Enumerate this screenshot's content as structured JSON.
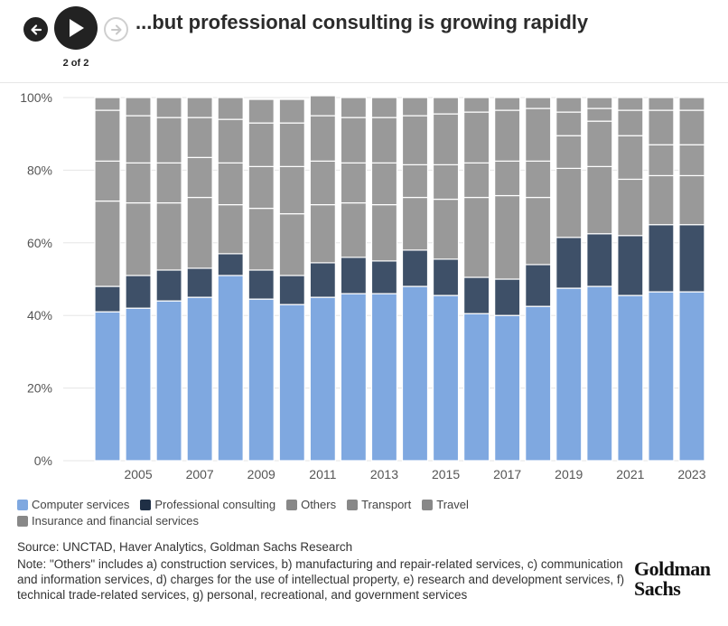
{
  "header": {
    "back_icon": "arrow-left-icon",
    "play_icon": "play-icon",
    "forward_icon": "arrow-right-icon",
    "page_counter": "2 of 2",
    "title": "...but professional consulting is growing rapidly"
  },
  "colors": {
    "computer_services": "#7fa8e0",
    "professional_consulting": "#3e5068",
    "others": "#999999",
    "transport": "#9a9a9a",
    "travel": "#999999",
    "insurance": "#9a9a9a",
    "grid": "#e5e5e5"
  },
  "chart_data": {
    "type": "bar",
    "stacked": true,
    "title": "",
    "xlabel": "",
    "ylabel": "",
    "ylim": [
      0,
      100
    ],
    "y_ticks": [
      "0%",
      "20%",
      "40%",
      "60%",
      "80%",
      "100%"
    ],
    "x_tick_labels": [
      "2005",
      "2007",
      "2009",
      "2011",
      "2013",
      "2015",
      "2017",
      "2019",
      "2021",
      "2023"
    ],
    "categories": [
      "2004",
      "2005",
      "2006",
      "2007",
      "2008",
      "2009",
      "2010",
      "2011",
      "2012",
      "2013",
      "2014",
      "2015",
      "2016",
      "2017",
      "2018",
      "2019",
      "2020",
      "2021",
      "2022",
      "2023"
    ],
    "series": [
      {
        "name": "Computer services",
        "color": "#7fa8e0",
        "values": [
          41,
          42,
          44,
          45,
          51,
          44.5,
          43,
          45,
          46,
          46,
          48,
          45.5,
          40.5,
          40,
          42.5,
          47.5,
          48,
          45.5,
          46.5,
          46.5
        ]
      },
      {
        "name": "Professional consulting",
        "color": "#3e5068",
        "values": [
          7,
          9,
          8.5,
          8,
          6,
          8,
          8,
          9.5,
          10,
          9,
          10,
          10,
          10,
          10,
          11.5,
          14,
          14.5,
          16.5,
          18.5,
          18.5
        ]
      },
      {
        "name": "Others",
        "color": "#999999",
        "values": [
          23.5,
          20,
          18.5,
          19.5,
          13.5,
          17,
          17,
          16,
          15,
          15.5,
          14.5,
          16.5,
          22,
          23,
          18.5,
          19,
          18.5,
          15.5,
          13.5,
          13.5
        ]
      },
      {
        "name": "Transport",
        "color": "#9a9a9a",
        "values": [
          11,
          11,
          11,
          11,
          11.5,
          11.5,
          13,
          12,
          11,
          11.5,
          9,
          9.5,
          9.5,
          9.5,
          10,
          9,
          12.5,
          12,
          8.5,
          8.5
        ]
      },
      {
        "name": "Travel",
        "color": "#999999",
        "values": [
          14,
          13,
          12.5,
          11,
          12,
          12,
          12,
          12.5,
          12.5,
          12.5,
          13.5,
          14,
          14,
          14,
          14.5,
          6.5,
          3.5,
          7,
          9.5,
          9.5
        ]
      },
      {
        "name": "Insurance and financial services",
        "color": "#9a9a9a",
        "values": [
          3.5,
          5,
          5.5,
          5.5,
          6,
          6.5,
          6.5,
          5.5,
          5.5,
          5.5,
          5,
          4.5,
          4,
          3.5,
          3,
          4,
          3,
          3.5,
          3.5,
          3.5
        ]
      }
    ],
    "grid": true,
    "legend": "bottom"
  },
  "legend": {
    "items": [
      {
        "label": "Computer services",
        "color": "#7fa8e0"
      },
      {
        "label": "Professional consulting",
        "color": "#1f2f45"
      },
      {
        "label": "Others",
        "color": "#888888"
      },
      {
        "label": "Transport",
        "color": "#888888"
      },
      {
        "label": "Travel",
        "color": "#888888"
      },
      {
        "label": "Insurance and financial services",
        "color": "#888888"
      }
    ]
  },
  "footer": {
    "source": "Source: UNCTAD, Haver Analytics, Goldman Sachs Research",
    "note": "Note: \"Others\" includes a) construction services, b) manufacturing and repair-related services, c) communication and information services, d) charges for the use of intellectual property, e) research and development services, f) technical trade-related services, g) personal, recreational, and government services",
    "logo_line1": "Goldman",
    "logo_line2": "Sachs"
  }
}
